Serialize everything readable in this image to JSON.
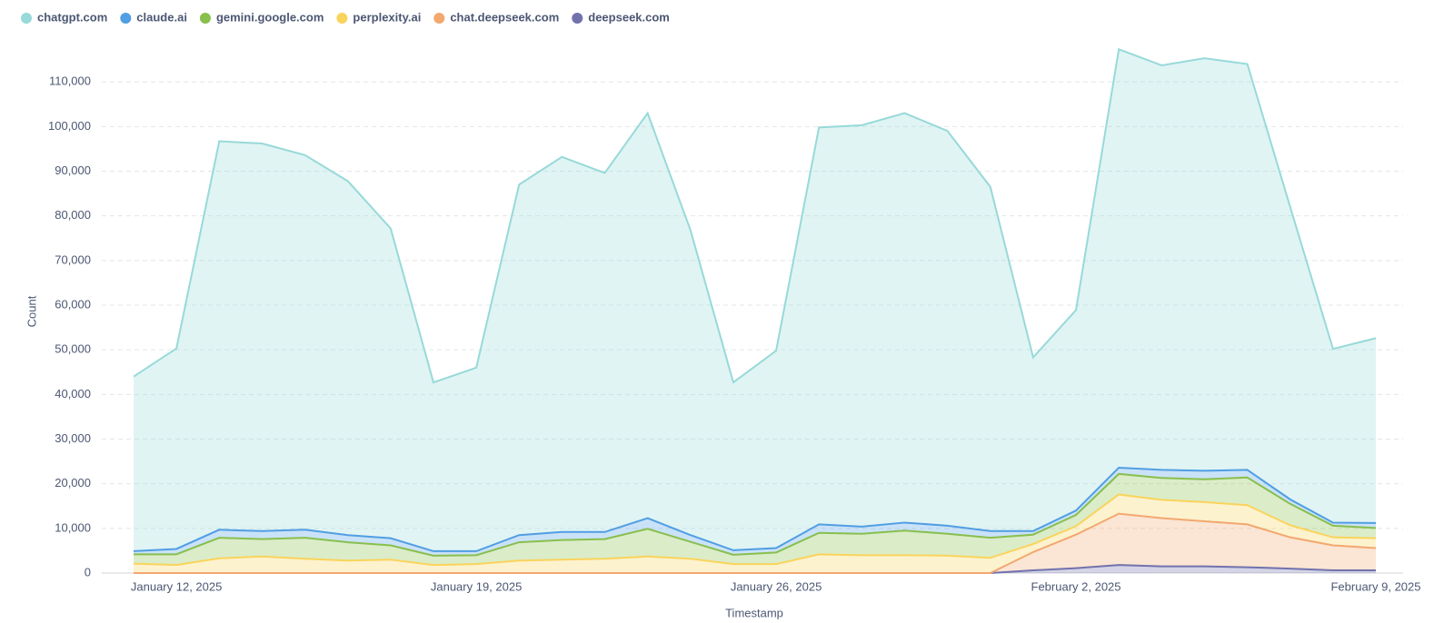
{
  "chart_data": {
    "type": "stacked_area",
    "x_label": "Timestamp",
    "y_label": "Count",
    "x": [
      "2025-01-11",
      "2025-01-12",
      "2025-01-13",
      "2025-01-14",
      "2025-01-15",
      "2025-01-16",
      "2025-01-17",
      "2025-01-18",
      "2025-01-19",
      "2025-01-20",
      "2025-01-21",
      "2025-01-22",
      "2025-01-23",
      "2025-01-24",
      "2025-01-25",
      "2025-01-26",
      "2025-01-27",
      "2025-01-28",
      "2025-01-29",
      "2025-01-30",
      "2025-01-31",
      "2025-02-01",
      "2025-02-02",
      "2025-02-03",
      "2025-02-04",
      "2025-02-05",
      "2025-02-06",
      "2025-02-07",
      "2025-02-08",
      "2025-02-09"
    ],
    "xticks": [
      {
        "value": "2025-01-12",
        "label": "January 12, 2025"
      },
      {
        "value": "2025-01-19",
        "label": "January 19, 2025"
      },
      {
        "value": "2025-01-26",
        "label": "January 26, 2025"
      },
      {
        "value": "2025-02-02",
        "label": "February 2, 2025"
      },
      {
        "value": "2025-02-09",
        "label": "February 9, 2025"
      }
    ],
    "ylim": [
      0,
      120000
    ],
    "yticks": [
      0,
      {
        "value": 10000,
        "label": "10,000"
      },
      {
        "value": 20000,
        "label": "20,000"
      },
      {
        "value": 30000,
        "label": "30,000"
      },
      {
        "value": 40000,
        "label": "40,000"
      },
      {
        "value": 50000,
        "label": "50,000"
      },
      {
        "value": 60000,
        "label": "60,000"
      },
      {
        "value": 70000,
        "label": "70,000"
      },
      {
        "value": 80000,
        "label": "80,000"
      },
      {
        "value": 90000,
        "label": "90,000"
      },
      {
        "value": 100000,
        "label": "100,000"
      },
      {
        "value": 110000,
        "label": "110,000"
      }
    ],
    "grid": true,
    "legend": "top-left",
    "series": [
      {
        "name": "chatgpt.com",
        "color": "#98d9d9",
        "values": [
          39100,
          44900,
          87000,
          86800,
          83900,
          79300,
          69400,
          37800,
          41100,
          78500,
          84000,
          80400,
          90700,
          68300,
          37600,
          44200,
          88900,
          89900,
          91700,
          88400,
          77100,
          38900,
          44900,
          93700,
          90600,
          92400,
          90900,
          65500,
          38900,
          41400
        ]
      },
      {
        "name": "claude.ai",
        "color": "#509ee3",
        "values": [
          700,
          1200,
          1800,
          1800,
          1800,
          1600,
          1600,
          1000,
          900,
          1600,
          1800,
          1600,
          2400,
          1500,
          1000,
          1000,
          1900,
          1600,
          1800,
          1800,
          1500,
          800,
          1000,
          1400,
          1800,
          1900,
          1700,
          1000,
          700,
          1100
        ]
      },
      {
        "name": "gemini.google.com",
        "color": "#88bf4d",
        "values": [
          2100,
          2400,
          4600,
          3900,
          4700,
          4100,
          3200,
          2100,
          2000,
          4100,
          4400,
          4400,
          6200,
          3800,
          2100,
          2600,
          4800,
          4800,
          5500,
          4900,
          4500,
          2100,
          2500,
          4600,
          4900,
          5100,
          6200,
          4800,
          2600,
          2300
        ]
      },
      {
        "name": "perplexity.ai",
        "color": "#f9d45c",
        "values": [
          2100,
          1800,
          3300,
          3700,
          3200,
          2800,
          3000,
          1800,
          2000,
          2800,
          3000,
          3200,
          3700,
          3200,
          2000,
          2000,
          4200,
          4000,
          4000,
          3900,
          3400,
          1800,
          1900,
          4300,
          4100,
          4300,
          4300,
          2700,
          1800,
          2200
        ]
      },
      {
        "name": "chat.deepseek.com",
        "color": "#f2a86f",
        "values": [
          0,
          0,
          0,
          0,
          0,
          0,
          0,
          0,
          0,
          0,
          0,
          0,
          0,
          0,
          0,
          0,
          0,
          0,
          0,
          0,
          0,
          4100,
          7500,
          11500,
          10800,
          10100,
          9600,
          7000,
          5600,
          5000
        ]
      },
      {
        "name": "deepseek.com",
        "color": "#7172ad",
        "values": [
          0,
          0,
          0,
          0,
          0,
          0,
          0,
          0,
          0,
          0,
          0,
          0,
          0,
          0,
          0,
          0,
          0,
          0,
          0,
          0,
          0,
          600,
          1100,
          1800,
          1500,
          1500,
          1300,
          1000,
          600,
          600
        ]
      }
    ]
  }
}
